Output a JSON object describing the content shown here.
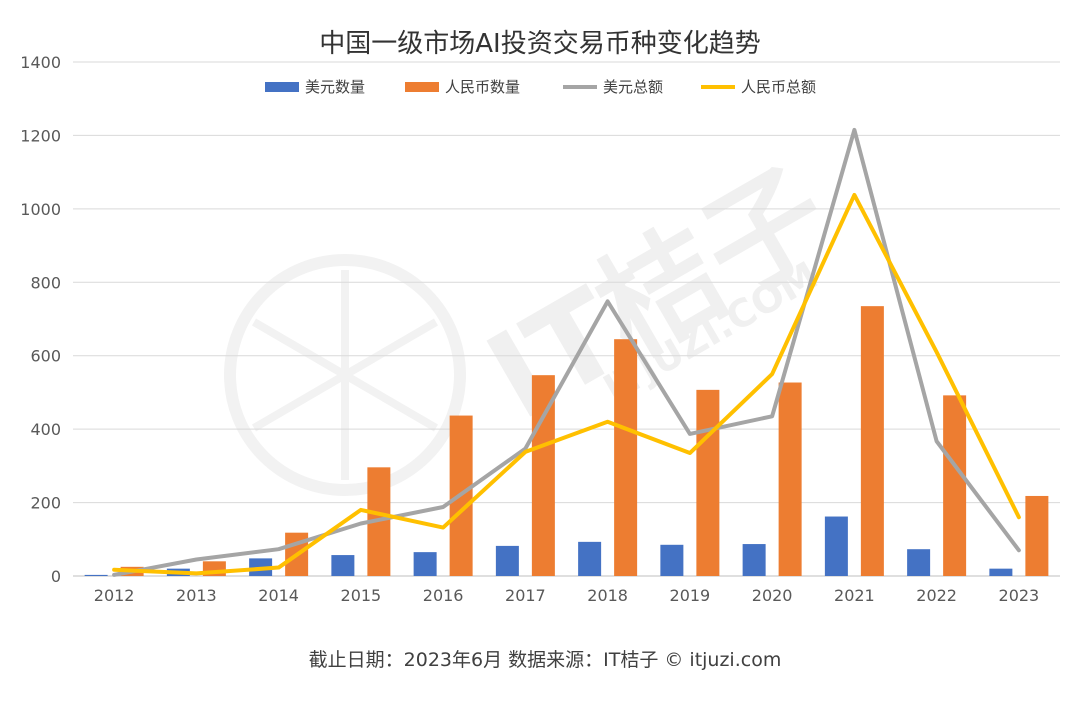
{
  "chart_data": {
    "type": "bar",
    "title": "中国一级市场AI投资交易币种变化趋势",
    "categories": [
      "2012",
      "2013",
      "2014",
      "2015",
      "2016",
      "2017",
      "2018",
      "2019",
      "2020",
      "2021",
      "2022",
      "2023"
    ],
    "ylim": [
      0,
      1400
    ],
    "yticks": [
      0,
      200,
      400,
      600,
      800,
      1000,
      1200,
      1400
    ],
    "grid": true,
    "legend_position": "top",
    "series": [
      {
        "name": "美元数量",
        "kind": "bar",
        "color": "#4472C4",
        "values": [
          3,
          20,
          48,
          57,
          65,
          82,
          93,
          85,
          87,
          162,
          73,
          20
        ]
      },
      {
        "name": "人民币数量",
        "kind": "bar",
        "color": "#ED7D31",
        "values": [
          25,
          40,
          118,
          296,
          437,
          547,
          645,
          507,
          527,
          735,
          492,
          218
        ]
      },
      {
        "name": "美元总额",
        "kind": "line",
        "color": "#A5A5A5",
        "values": [
          3,
          45,
          73,
          143,
          188,
          347,
          748,
          387,
          435,
          1215,
          367,
          70
        ]
      },
      {
        "name": "人民币总额",
        "kind": "line",
        "color": "#FFC000",
        "values": [
          17,
          7,
          23,
          180,
          132,
          338,
          420,
          335,
          550,
          1038,
          610,
          160
        ]
      }
    ]
  },
  "footer": "截止日期：2023年6月    数据来源：IT桔子 © itjuzi.com",
  "watermark": {
    "main": "IT桔子",
    "sub": "ITJUZI.COM"
  }
}
